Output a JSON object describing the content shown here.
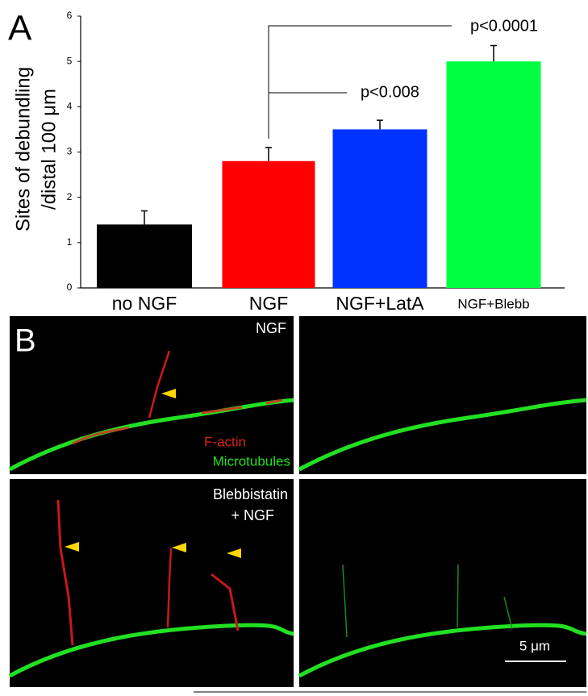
{
  "chart_data": {
    "type": "bar",
    "panel_label": "A",
    "y_label": [
      "Sites of debundling",
      "/distal 100 μm"
    ],
    "categories": [
      "no NGF",
      "NGF",
      "NGF+LatA",
      "NGF+Blebb"
    ],
    "values": [
      1.4,
      2.8,
      3.5,
      5.0
    ],
    "errors": [
      0.3,
      0.3,
      0.2,
      0.35
    ],
    "colors": [
      "#000000",
      "#ff0000",
      "#0033ff",
      "#00ff40"
    ],
    "ylim": [
      0,
      6
    ],
    "yticks": [
      0,
      1,
      2,
      3,
      4,
      5,
      6
    ],
    "annotations": [
      "p<0.0001",
      "p<0.008"
    ]
  },
  "panel_b": {
    "label": "B",
    "top_label": "NGF",
    "stain_labels": [
      "F-actin",
      "Microtubules"
    ],
    "bottom_label": [
      "Blebbistatin",
      "+ NGF"
    ],
    "scale_bar": "5 μm"
  }
}
